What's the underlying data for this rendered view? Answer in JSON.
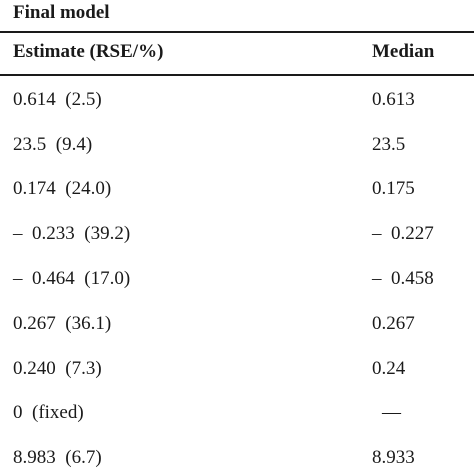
{
  "table": {
    "title": "Final model",
    "headers": {
      "estimate": "Estimate (RSE/%)",
      "median": "Median"
    },
    "rows": [
      {
        "estimate": "0.614  (2.5)",
        "median": "0.613"
      },
      {
        "estimate": "23.5  (9.4)",
        "median": "23.5"
      },
      {
        "estimate": "0.174  (24.0)",
        "median": "0.175"
      },
      {
        "estimate": "–  0.233  (39.2)",
        "median": "–  0.227"
      },
      {
        "estimate": "–  0.464  (17.0)",
        "median": "–  0.458"
      },
      {
        "estimate": "0.267  (36.1)",
        "median": "0.267"
      },
      {
        "estimate": "0.240  (7.3)",
        "median": "0.24"
      },
      {
        "estimate": "0  (fixed)",
        "median": "—"
      },
      {
        "estimate": "8.983  (6.7)",
        "median": "8.933"
      }
    ]
  }
}
